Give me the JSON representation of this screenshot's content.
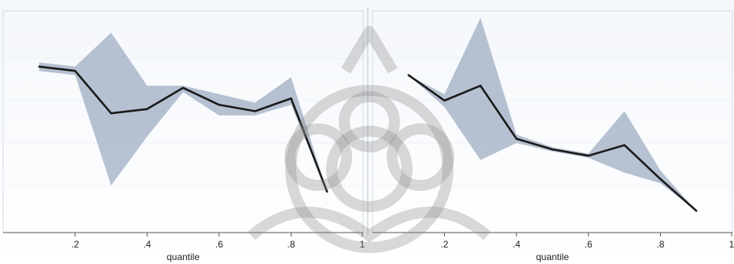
{
  "chart_data": [
    {
      "type": "line",
      "title": "",
      "xlabel": "quantile",
      "ylabel": "",
      "xlim": [
        0,
        1
      ],
      "ylim": [
        0,
        1
      ],
      "grid": false,
      "x_ticks": [
        ".2",
        ".4",
        ".6",
        ".8",
        "1"
      ],
      "x_tick_values": [
        0.2,
        0.4,
        0.6,
        0.8,
        1.0
      ],
      "line_color": "#1a1a1a",
      "band_color": "#a9b6c9",
      "series": [
        {
          "x": [
            0.1,
            0.2,
            0.3,
            0.4,
            0.5,
            0.6,
            0.7,
            0.8,
            0.9
          ],
          "values": [
            0.76,
            0.74,
            0.54,
            0.56,
            0.66,
            0.58,
            0.55,
            0.61,
            0.17
          ],
          "lower": [
            0.74,
            0.72,
            0.2,
            0.43,
            0.64,
            0.53,
            0.53,
            0.58,
            0.17
          ],
          "upper": [
            0.78,
            0.76,
            0.92,
            0.67,
            0.67,
            0.63,
            0.59,
            0.71,
            0.17
          ]
        }
      ]
    },
    {
      "type": "line",
      "title": "",
      "xlabel": "quantile",
      "ylabel": "",
      "xlim": [
        0,
        1
      ],
      "ylim": [
        0,
        1
      ],
      "grid": false,
      "x_ticks": [
        ".2",
        ".4",
        ".6",
        ".8",
        "1"
      ],
      "x_tick_values": [
        0.2,
        0.4,
        0.6,
        0.8,
        1.0
      ],
      "line_color": "#1a1a1a",
      "band_color": "#a9b6c9",
      "series": [
        {
          "x": [
            0.1,
            0.2,
            0.3,
            0.4,
            0.5,
            0.6,
            0.7,
            0.8,
            0.9
          ],
          "values": [
            0.72,
            0.6,
            0.67,
            0.42,
            0.37,
            0.34,
            0.39,
            0.23,
            0.08
          ],
          "lower": [
            0.72,
            0.57,
            0.32,
            0.4,
            0.36,
            0.33,
            0.26,
            0.21,
            0.08
          ],
          "upper": [
            0.72,
            0.63,
            0.99,
            0.44,
            0.38,
            0.35,
            0.55,
            0.27,
            0.08
          ]
        }
      ]
    }
  ]
}
